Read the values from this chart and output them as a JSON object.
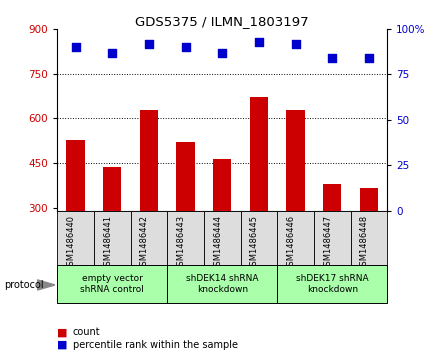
{
  "title": "GDS5375 / ILMN_1803197",
  "samples": [
    "GSM1486440",
    "GSM1486441",
    "GSM1486442",
    "GSM1486443",
    "GSM1486444",
    "GSM1486445",
    "GSM1486446",
    "GSM1486447",
    "GSM1486448"
  ],
  "counts": [
    527,
    437,
    627,
    519,
    462,
    672,
    627,
    378,
    365
  ],
  "percentile_ranks": [
    90,
    87,
    92,
    90,
    87,
    93,
    92,
    84,
    84
  ],
  "ylim_left": [
    290,
    900
  ],
  "ylim_right": [
    0,
    100
  ],
  "yticks_left": [
    300,
    450,
    600,
    750,
    900
  ],
  "yticks_right": [
    0,
    25,
    50,
    75,
    100
  ],
  "bar_color": "#cc0000",
  "dot_color": "#0000cc",
  "groups": [
    {
      "label": "empty vector\nshRNA control",
      "start": 0,
      "end": 3
    },
    {
      "label": "shDEK14 shRNA\nknockdown",
      "start": 3,
      "end": 6
    },
    {
      "label": "shDEK17 shRNA\nknockdown",
      "start": 6,
      "end": 9
    }
  ],
  "group_bg_color": "#aaffaa",
  "sample_box_color": "#dddddd",
  "protocol_label": "protocol",
  "legend_count_label": "count",
  "legend_percentile_label": "percentile rank within the sample",
  "bar_width": 0.5,
  "dot_size": 28,
  "background_color": "#ffffff",
  "plot_bg_color": "#ffffff",
  "grid_color": "#000000",
  "tick_label_color_left": "#cc0000",
  "tick_label_color_right": "#0000cc"
}
